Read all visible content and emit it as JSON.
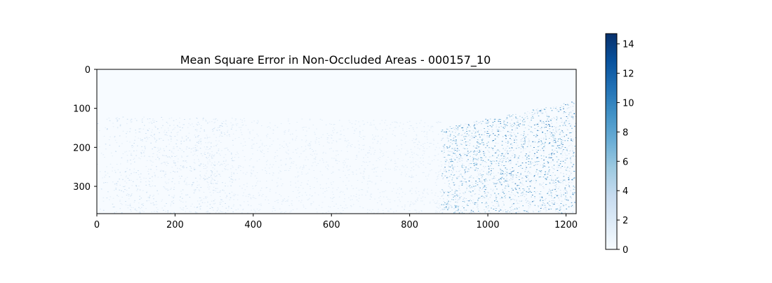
{
  "chart_data": {
    "type": "heatmap",
    "title": "Mean Square Error in Non-Occluded Areas - 000157_10",
    "xlabel": "",
    "ylabel": "",
    "xlim": [
      0,
      1226
    ],
    "ylim": [
      370,
      0
    ],
    "x_ticks": [
      0,
      200,
      400,
      600,
      800,
      1000,
      1200
    ],
    "y_ticks": [
      0,
      100,
      200,
      300
    ],
    "colormap": "Blues",
    "colorbar": {
      "range": [
        0,
        14.7
      ],
      "ticks": [
        0,
        2,
        4,
        6,
        8,
        10,
        12,
        14
      ],
      "colors": [
        "#f7fbff",
        "#deebf7",
        "#c6dbef",
        "#9ecae1",
        "#6baed6",
        "#4292c6",
        "#2171b5",
        "#08519c",
        "#08306b"
      ]
    },
    "background_value": 0
  }
}
